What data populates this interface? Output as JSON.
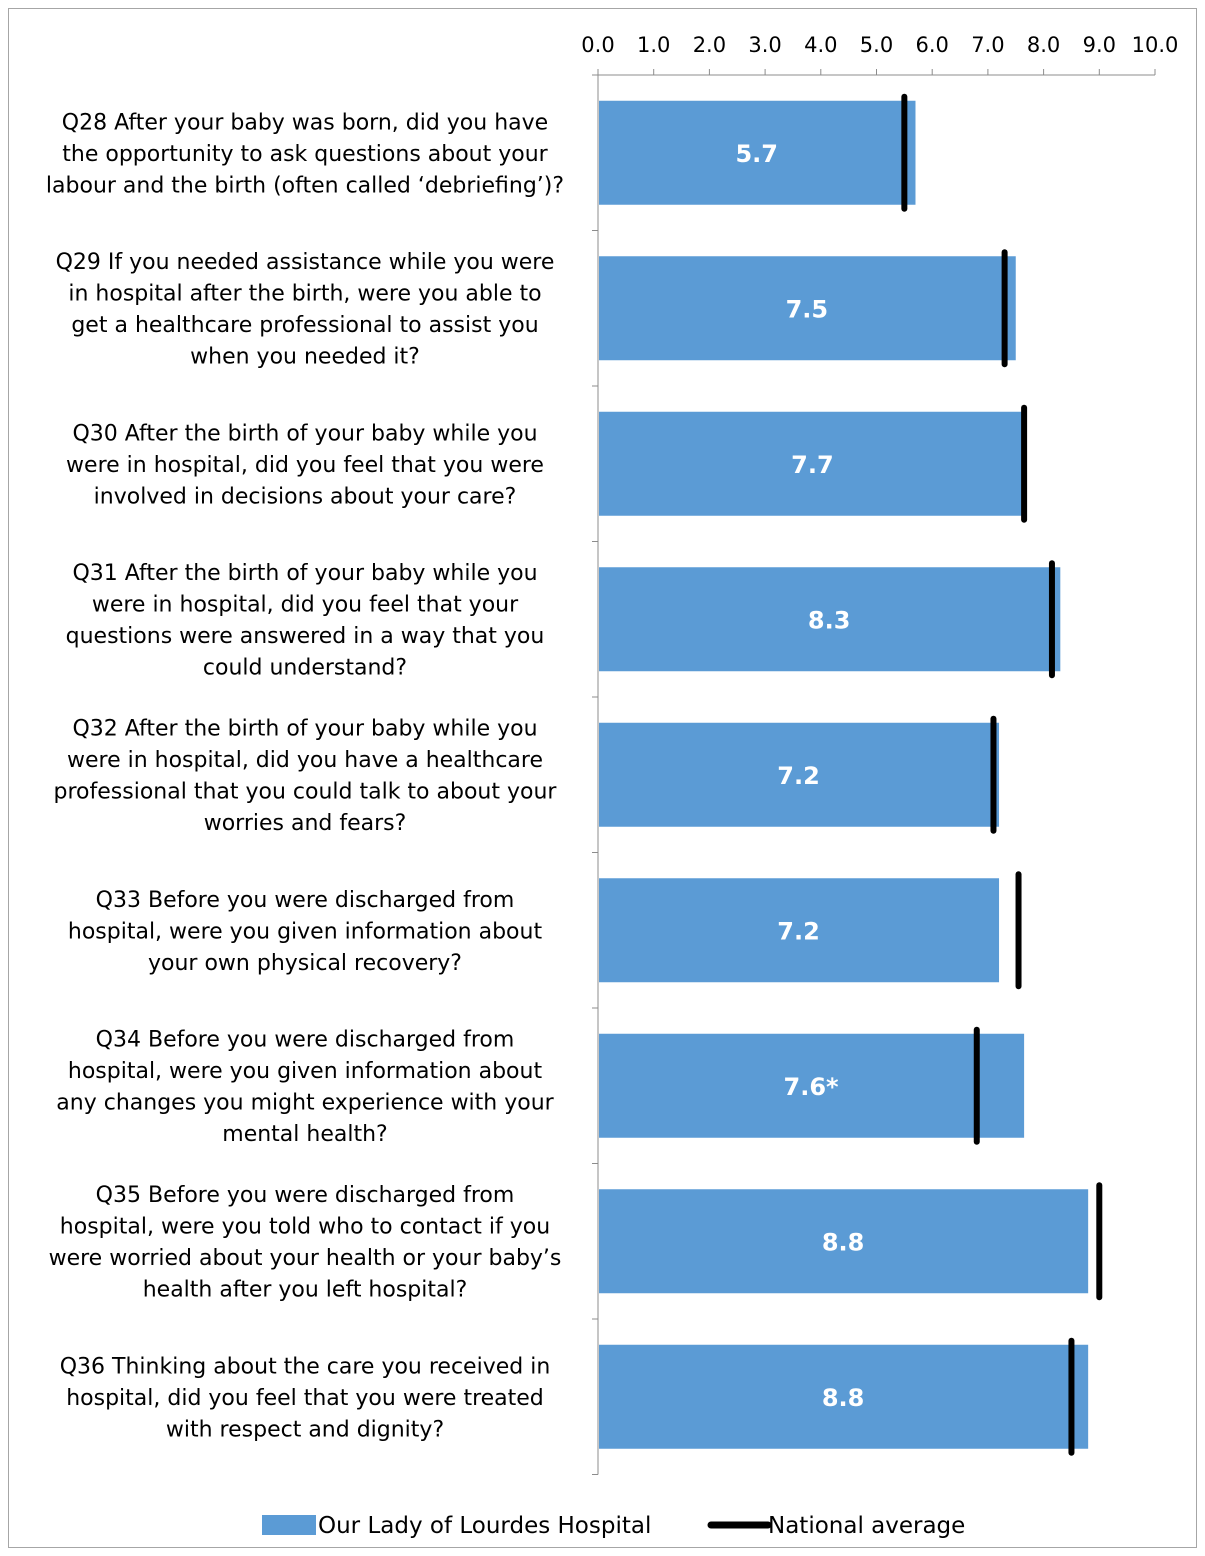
{
  "chart_data": {
    "type": "bar",
    "orientation": "horizontal",
    "xlim": [
      0,
      10
    ],
    "x_ticks": [
      "0.0",
      "1.0",
      "2.0",
      "3.0",
      "4.0",
      "5.0",
      "6.0",
      "7.0",
      "8.0",
      "9.0",
      "10.0"
    ],
    "grid": false,
    "legend_position": "bottom",
    "categories": [
      [
        "Q28 After your baby was born, did you have",
        "the opportunity to ask questions about your",
        "labour and the birth (often called ‘debriefing’)?"
      ],
      [
        "Q29 If you needed assistance while you were",
        "in hospital after the birth, were you able to",
        "get a healthcare professional to assist you",
        "when you needed it?"
      ],
      [
        "Q30 After the birth of your baby while you",
        "were in hospital, did you feel that you were",
        "involved in decisions about your care?"
      ],
      [
        "Q31 After the birth of your baby while you",
        "were in hospital, did you feel that your",
        "questions were answered in a way that you",
        "could understand?"
      ],
      [
        "Q32 After the birth of your baby while you",
        "were in hospital, did you have a healthcare",
        "professional that you could talk to about your",
        "worries and fears?"
      ],
      [
        "Q33 Before you were discharged from",
        "hospital, were you given information about",
        "your own physical recovery?"
      ],
      [
        "Q34 Before you were discharged from",
        "hospital, were you given information about",
        "any changes you might experience with your",
        "mental health?"
      ],
      [
        "Q35 Before you were discharged from",
        "hospital, were you told who to contact if you",
        "were worried about your health or your baby’s",
        "health after you left hospital?"
      ],
      [
        "Q36 Thinking about the care you received in",
        "hospital, did you feel that you were treated",
        "with respect and dignity?"
      ]
    ],
    "series": [
      {
        "name": "Our Lady of Lourdes Hospital",
        "color": "#5b9bd5",
        "values": [
          5.7,
          7.5,
          7.7,
          8.3,
          7.2,
          7.2,
          7.65,
          8.8,
          8.8
        ],
        "labels": [
          "5.7",
          "7.5",
          "7.7",
          "8.3",
          "7.2",
          "7.2",
          "7.6*",
          "8.8",
          "8.8"
        ]
      },
      {
        "name": "National average",
        "color": "#000000",
        "values": [
          5.5,
          7.3,
          7.65,
          8.15,
          7.1,
          7.55,
          6.8,
          9.0,
          8.5
        ]
      }
    ]
  }
}
